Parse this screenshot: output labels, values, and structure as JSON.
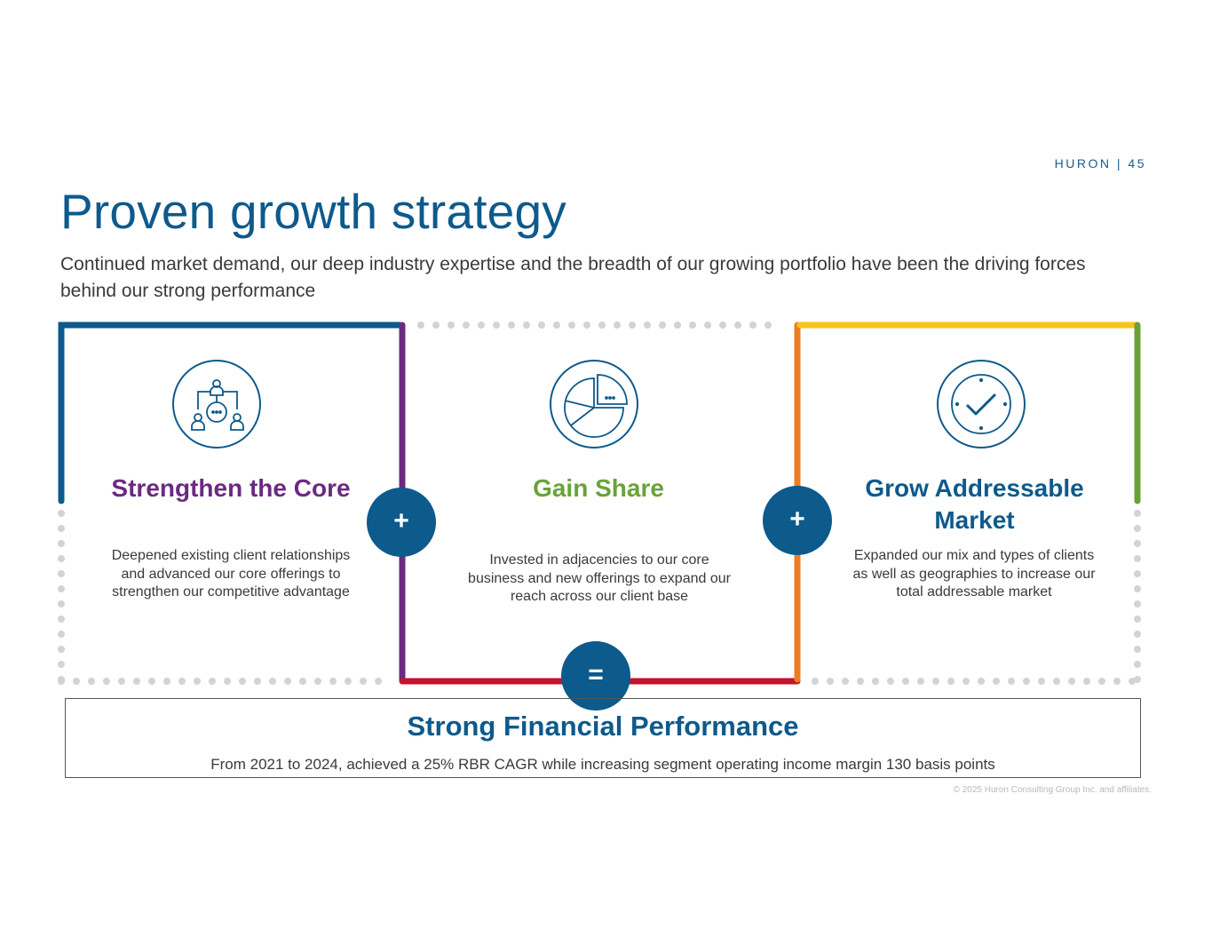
{
  "header": {
    "brand": "HURON",
    "page_number": "45",
    "tag": "HURON | 45"
  },
  "title": "Proven growth strategy",
  "subtitle": "Continued market demand, our deep industry expertise and the breadth of our growing portfolio have been the driving forces behind our strong performance",
  "columns": [
    {
      "title": "Strengthen the Core",
      "text": "Deepened existing client relationships and advanced our core offerings to strengthen our competitive advantage",
      "icon": "network-people-icon",
      "color": "#6b2a80"
    },
    {
      "title": "Gain Share",
      "text": "Invested in adjacencies to our core business and new offerings to expand our reach across our client base",
      "icon": "pie-chart-icon",
      "color": "#6aa23a"
    },
    {
      "title": "Grow Addressable Market",
      "text": "Expanded our mix and types of clients as well as geographies to increase our total addressable market",
      "icon": "check-badge-icon",
      "color": "#0d5a8c"
    }
  ],
  "operators": {
    "plus": "+",
    "equals": "="
  },
  "result": {
    "title": "Strong Financial Performance",
    "text": "From 2021 to 2024, achieved a 25% RBR CAGR while increasing segment operating income margin 130 basis points"
  },
  "copyright": "© 2025 Huron Consulting Group Inc. and affiliates.",
  "colors": {
    "navy": "#0d5a8c",
    "purple": "#6b2a80",
    "green": "#6aa23a",
    "orange": "#f07c22",
    "yellow": "#f8c31c",
    "red": "#c4122f",
    "dots": "#d3d3d3"
  }
}
